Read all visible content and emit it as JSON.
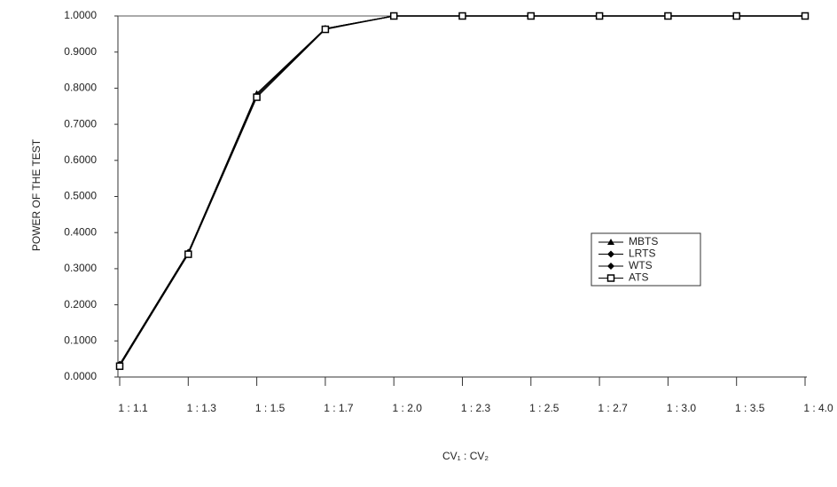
{
  "chart_data": {
    "type": "line",
    "y_label": "POWER OF THE TEST",
    "x_label": "CV₁ : CV₂",
    "categories": [
      "1 : 1.1",
      "1 : 1.3",
      "1 : 1.5",
      "1 : 1.7",
      "1 : 2.0",
      "1 : 2.3",
      "1 : 2.5",
      "1 : 2.7",
      "1 : 3.0",
      "1 : 3.5",
      "1 : 4.0"
    ],
    "series": [
      {
        "name": "MBTS",
        "color": "#000000",
        "marker": "triangle",
        "values": [
          0.035,
          0.345,
          0.785,
          0.965,
          1.0,
          1.0,
          1.0,
          1.0,
          1.0,
          1.0,
          1.0
        ]
      },
      {
        "name": "LRTS",
        "color": "#000000",
        "marker": "diamond",
        "values": [
          0.035,
          0.345,
          0.78,
          0.965,
          1.0,
          1.0,
          1.0,
          1.0,
          1.0,
          1.0,
          1.0
        ]
      },
      {
        "name": "WTS",
        "color": "#000000",
        "marker": "diamond",
        "values": [
          0.035,
          0.345,
          0.78,
          0.965,
          1.0,
          1.0,
          1.0,
          1.0,
          1.0,
          1.0,
          1.0
        ]
      },
      {
        "name": "ATS",
        "color": "#000000",
        "marker": "square",
        "values": [
          0.03,
          0.34,
          0.775,
          0.963,
          1.0,
          1.0,
          1.0,
          1.0,
          1.0,
          1.0,
          1.0
        ]
      }
    ],
    "ylim": [
      0,
      1
    ],
    "yticks": [
      {
        "value": 0,
        "label": "0.0000"
      },
      {
        "value": 0.1,
        "label": "0.1000"
      },
      {
        "value": 0.2,
        "label": "0.2000"
      },
      {
        "value": 0.3,
        "label": "0.3000"
      },
      {
        "value": 0.4,
        "label": "0.4000"
      },
      {
        "value": 0.5,
        "label": "0.5000"
      },
      {
        "value": 0.6,
        "label": "0.6000"
      },
      {
        "value": 0.7,
        "label": "0.7000"
      },
      {
        "value": 0.8,
        "label": "0.8000"
      },
      {
        "value": 0.9,
        "label": "0.9000"
      },
      {
        "value": 1,
        "label": "1.0000"
      }
    ],
    "grid": false,
    "legend_position": "right"
  }
}
